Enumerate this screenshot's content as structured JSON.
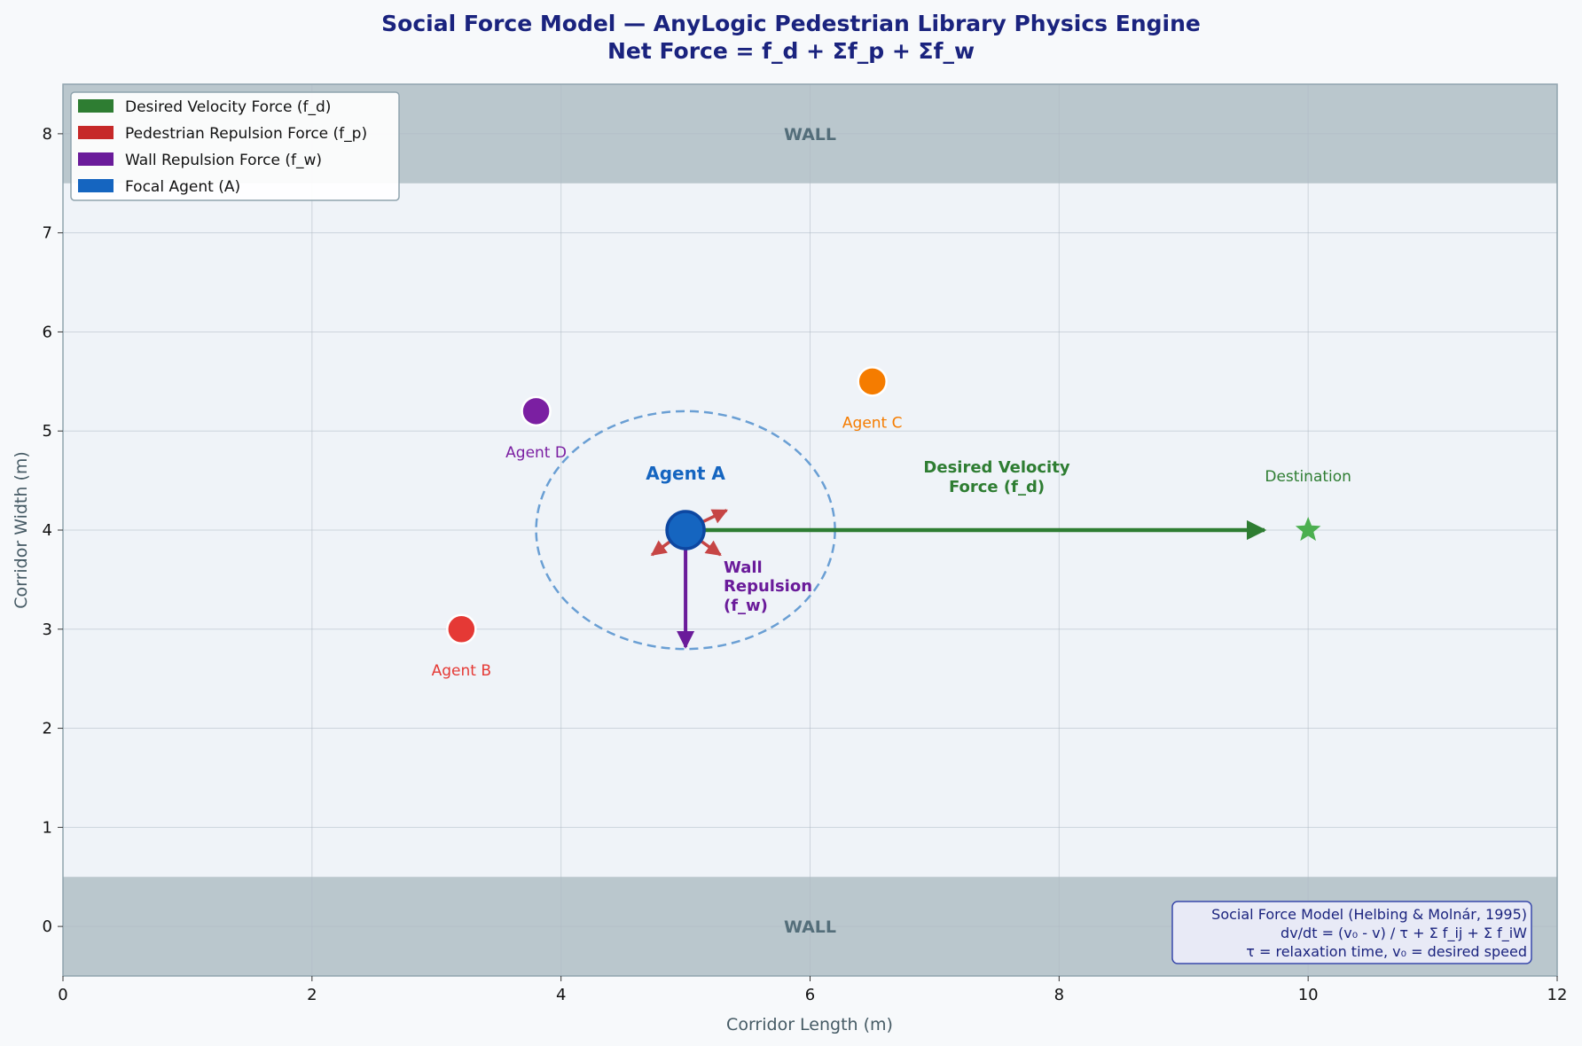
{
  "title": {
    "line1": "Social Force Model — AnyLogic Pedestrian Library Physics Engine",
    "line2": "Net Force = f_d + Σf_p + Σf_w"
  },
  "axes": {
    "xlabel": "Corridor Length (m)",
    "ylabel": "Corridor Width (m)",
    "xlim": [
      0,
      12
    ],
    "ylim": [
      -0.5,
      8.5
    ],
    "xticks": [
      "0",
      "2",
      "4",
      "6",
      "8",
      "10",
      "12"
    ],
    "yticks": [
      "0",
      "1",
      "2",
      "3",
      "4",
      "5",
      "6",
      "7",
      "8"
    ],
    "grid": true
  },
  "walls": {
    "top_label": "WALL",
    "bottom_label": "WALL",
    "top_range": [
      7.5,
      8.5
    ],
    "bottom_range": [
      -0.5,
      0.5
    ],
    "color": "#b0bec5"
  },
  "legend": {
    "placement": "top-left",
    "items": [
      {
        "label": "Desired Velocity Force (f_d)",
        "color": "#2e7d32"
      },
      {
        "label": "Pedestrian Repulsion Force (f_p)",
        "color": "#c62828"
      },
      {
        "label": "Wall Repulsion Force (f_w)",
        "color": "#6a1b9a"
      },
      {
        "label": "Focal Agent (A)",
        "color": "#1565c0"
      }
    ]
  },
  "agents": [
    {
      "key": "a",
      "label": "Agent A",
      "x": 5.0,
      "y": 4.0,
      "color": "#1565c0"
    },
    {
      "key": "b",
      "label": "Agent B",
      "x": 3.2,
      "y": 3.0,
      "color": "#e53935"
    },
    {
      "key": "c",
      "label": "Agent C",
      "x": 6.5,
      "y": 5.5,
      "color": "#f57c00"
    },
    {
      "key": "d",
      "label": "Agent D",
      "x": 3.8,
      "y": 5.2,
      "color": "#7b1fa2"
    }
  ],
  "personal_space": {
    "cx": 5.0,
    "cy": 4.0,
    "rx": 1.2,
    "ry": 1.2,
    "color": "#6a9fd4"
  },
  "destination": {
    "label": "Destination",
    "x": 10.0,
    "y": 4.0,
    "color": "#4caf50"
  },
  "forces": {
    "desired": {
      "label_line1": "Desired Velocity",
      "label_line2": "Force (f_d)",
      "from": [
        5.0,
        4.0
      ],
      "to": [
        9.65,
        4.0
      ],
      "color": "#2e7d32"
    },
    "wall": {
      "label_line1": "Wall",
      "label_line2": "Repulsion",
      "label_line3": "(f_w)",
      "from": [
        5.0,
        4.0
      ],
      "to": [
        5.0,
        2.82
      ],
      "color": "#6a1b9a"
    },
    "pedestrian": {
      "color": "#c64545",
      "arrows": [
        {
          "from": [
            5.0,
            4.0
          ],
          "to": [
            5.33,
            4.2
          ]
        },
        {
          "from": [
            5.0,
            4.0
          ],
          "to": [
            4.73,
            3.75
          ]
        },
        {
          "from": [
            5.0,
            4.0
          ],
          "to": [
            5.28,
            3.75
          ]
        }
      ]
    }
  },
  "formula_box": {
    "line1": "Social Force Model (Helbing & Molnár, 1995)",
    "line2": "dv/dt = (v₀ - v) / τ  +  Σ f_ij  +  Σ f_iW",
    "line3": "τ = relaxation time,  v₀ = desired speed",
    "placement": "bottom-right"
  }
}
